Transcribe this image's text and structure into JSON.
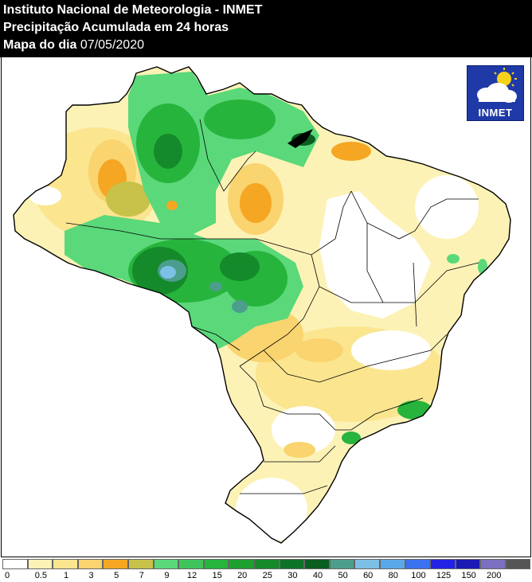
{
  "header": {
    "line1": "Instituto Nacional de Meteorologia - INMET",
    "line2": "Precipitação Acumulada em 24 horas",
    "line3_prefix": "Mapa do dia",
    "line3_date": "07/05/2020"
  },
  "logo": {
    "text": "INMET",
    "icon": "sun-cloud-icon"
  },
  "legend": {
    "colors": [
      "#ffffff",
      "#fdf2b6",
      "#fbe58f",
      "#f9d46f",
      "#f5a623",
      "#c8c24a",
      "#5ad87a",
      "#3fc45c",
      "#27b43c",
      "#1ea030",
      "#148a2a",
      "#0d7326",
      "#0a5e20",
      "#4b9e8c",
      "#7cc0e6",
      "#5aa8e8",
      "#3a72f0",
      "#2222e6",
      "#1a1ab4",
      "#7a6fc0",
      "#555555"
    ],
    "labels": [
      "0",
      "0.5",
      "1",
      "3",
      "5",
      "7",
      "9",
      "12",
      "15",
      "20",
      "25",
      "30",
      "40",
      "50",
      "60",
      "80",
      "100",
      "125",
      "150",
      "200"
    ]
  }
}
